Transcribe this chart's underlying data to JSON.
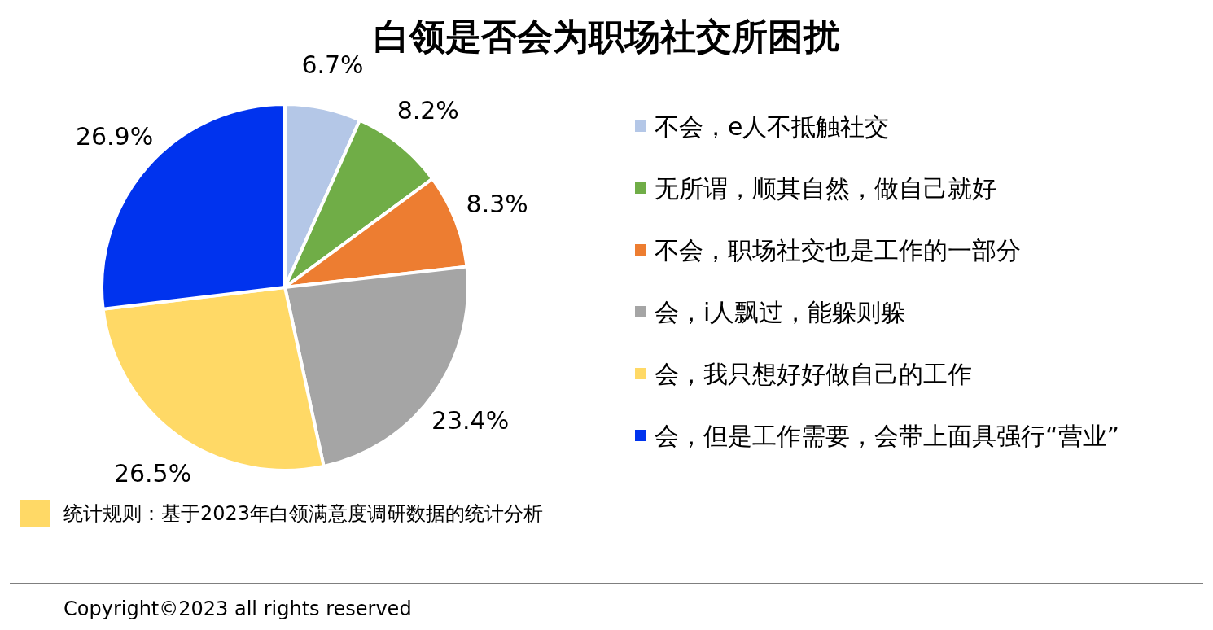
{
  "chart_data": {
    "type": "pie",
    "title": "白领是否会为职场社交所困扰",
    "categories": [
      "不会，e人不抵触社交",
      "无所谓，顺其自然，做自己就好",
      "不会，职场社交也是工作的一部分",
      "会，i人飘过，能躲则躲",
      "会，我只想好好做自己的工作",
      "会，但是工作需要，会带上面具强行“营业”"
    ],
    "values": [
      6.7,
      8.2,
      8.3,
      23.4,
      26.5,
      26.9
    ],
    "colors": [
      "#b4c7e7",
      "#70ad47",
      "#ed7d31",
      "#a5a5a5",
      "#ffd966",
      "#0033ee"
    ],
    "value_labels": [
      "6.7%",
      "8.2%",
      "8.3%",
      "23.4%",
      "26.5%",
      "26.9%"
    ],
    "legend": "right",
    "annotations": [
      "统计规则：基于2023年白领满意度调研数据的统计分析",
      "Copyright©2023 all rights reserved"
    ]
  }
}
